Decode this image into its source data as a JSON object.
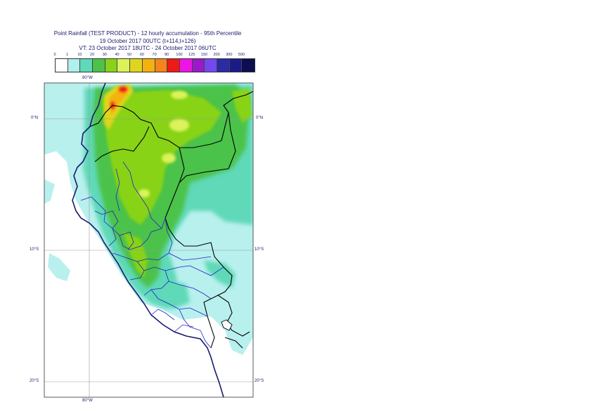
{
  "title": {
    "line1": "Point Rainfall (TEST PRODUCT) - 12 hourly accumulation - 95th Percentile",
    "line2": "19 October 2017 00UTC (t+114,t+126)",
    "line3": "VT: 23 October 2017 18UTC - 24 October 2017 06UTC"
  },
  "legend": {
    "thresholds": [
      "0",
      "1",
      "10",
      "20",
      "30",
      "40",
      "50",
      "60",
      "70",
      "80",
      "100",
      "125",
      "150",
      "200",
      "300",
      "500"
    ],
    "colors": [
      "#ffffff",
      "#aef0ee",
      "#5fd9b8",
      "#4cc24a",
      "#88d318",
      "#dcf25a",
      "#e0d51e",
      "#f3b20e",
      "#f5841a",
      "#ee1a16",
      "#ee14e6",
      "#9b19c9",
      "#7448ee",
      "#2b2ba6",
      "#1b1b88",
      "#0d0d52"
    ]
  },
  "axes": {
    "top_lon_label": "80°W",
    "bottom_lon_label": "80°W",
    "lat_labels": [
      "0°N",
      "10°S",
      "20°S"
    ]
  },
  "colors": {
    "sea_light": "#b8f0ee",
    "land_green": "#4cc24a",
    "coast": "#1a1a6e",
    "borders": "#000000",
    "admin": "#2323c8"
  }
}
